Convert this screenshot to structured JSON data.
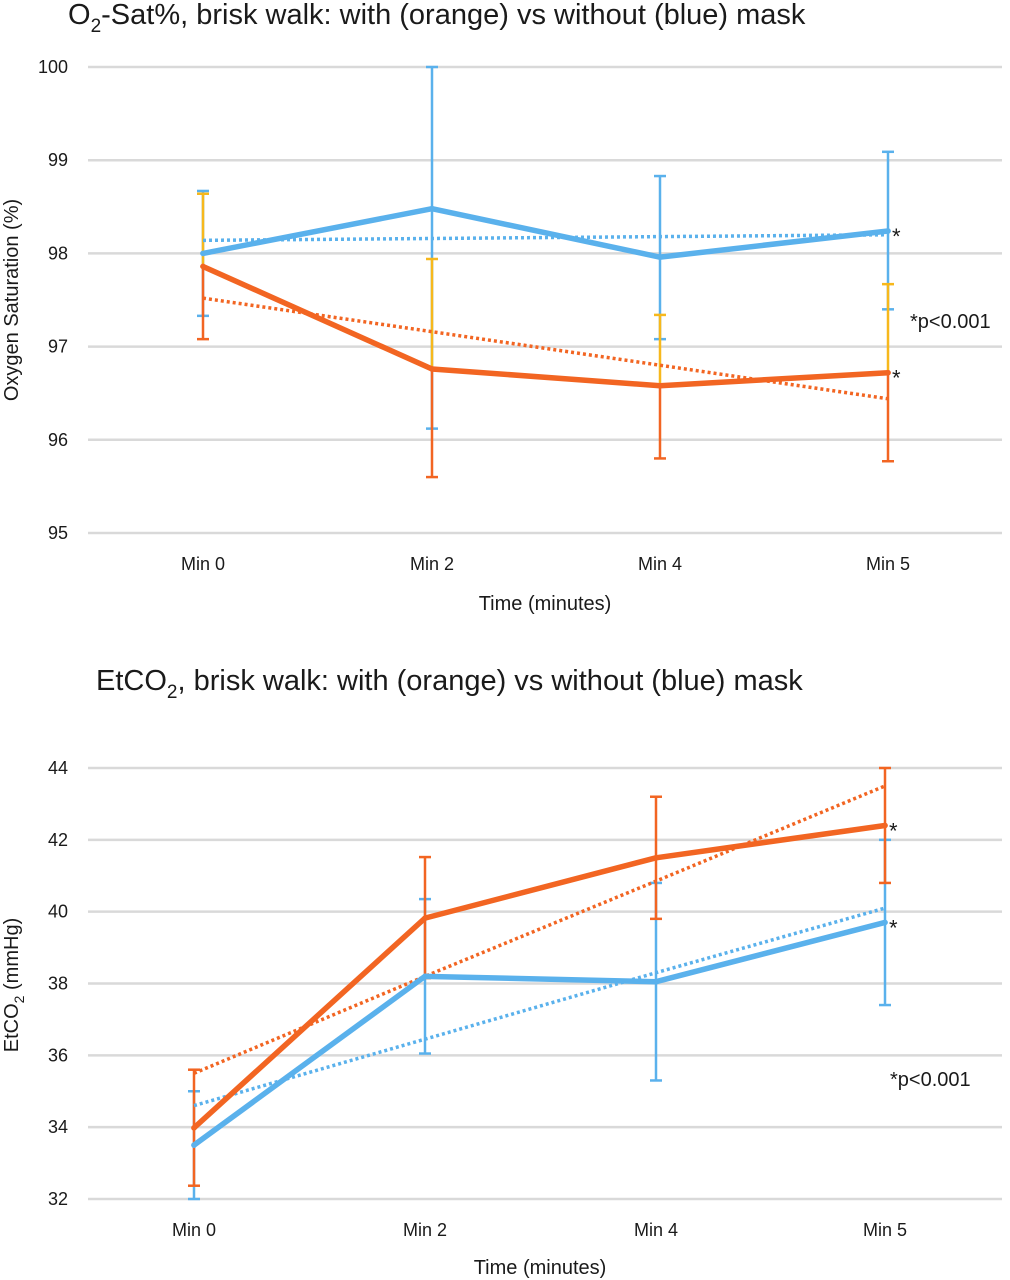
{
  "colors": {
    "with_mask": "#f26522",
    "without_mask": "#5ab1ec",
    "with_mask_error_top": "#f7b81c"
  },
  "chart_data": [
    {
      "type": "line",
      "title_pre": "O",
      "title_sub": "2",
      "title_post": "-Sat%, brisk walk: with (orange) vs without (blue) mask",
      "xlabel": "Time (minutes)",
      "ylabel": "Oxygen Saturation (%)",
      "categories": [
        "Min 0",
        "Min 2",
        "Min 4",
        "Min 5"
      ],
      "ylim": [
        95,
        100
      ],
      "yticks": [
        "95",
        "96",
        "97",
        "98",
        "99",
        "100"
      ],
      "grid": true,
      "note": "*p<0.001",
      "series": [
        {
          "key": "without",
          "values": [
            98.0,
            98.48,
            97.96,
            98.24
          ],
          "error_low": [
            97.33,
            96.12,
            97.08,
            97.4
          ],
          "error_high": [
            98.67,
            100.0,
            98.83,
            99.09
          ],
          "trend": [
            98.14,
            98.16,
            98.18,
            98.2
          ],
          "marker": "*"
        },
        {
          "key": "with",
          "values": [
            97.86,
            96.76,
            96.58,
            96.72
          ],
          "error_low": [
            97.08,
            95.6,
            95.8,
            95.77
          ],
          "error_high": [
            98.64,
            97.94,
            97.34,
            97.67
          ],
          "trend": [
            97.52,
            97.16,
            96.8,
            96.44
          ],
          "marker": "*"
        }
      ]
    },
    {
      "type": "line",
      "title_pre": "EtCO",
      "title_sub": "2",
      "title_post": ", brisk walk: with (orange) vs without (blue) mask",
      "xlabel": "Time (minutes)",
      "ylabel_pre": "EtCO",
      "ylabel_sub": "2",
      "ylabel_post": " (mmHg)",
      "categories": [
        "Min 0",
        "Min 2",
        "Min 4",
        "Min 5"
      ],
      "ylim": [
        32,
        44
      ],
      "yticks": [
        "32",
        "34",
        "36",
        "38",
        "40",
        "42",
        "44"
      ],
      "grid": true,
      "note": "*p<0.001",
      "series": [
        {
          "key": "with",
          "values": [
            33.98,
            39.82,
            41.5,
            42.4
          ],
          "error_low": [
            32.37,
            38.15,
            39.8,
            40.8
          ],
          "error_high": [
            35.6,
            41.52,
            43.2,
            44.0
          ],
          "trend": [
            35.5,
            38.2,
            40.85,
            43.5
          ],
          "marker": "*"
        },
        {
          "key": "without",
          "values": [
            33.5,
            38.2,
            38.05,
            39.7
          ],
          "error_low": [
            32.0,
            36.05,
            35.3,
            37.4
          ],
          "error_high": [
            35.0,
            40.35,
            40.8,
            42.0
          ],
          "trend": [
            34.6,
            36.45,
            38.3,
            40.1
          ],
          "marker": "*"
        }
      ]
    }
  ]
}
